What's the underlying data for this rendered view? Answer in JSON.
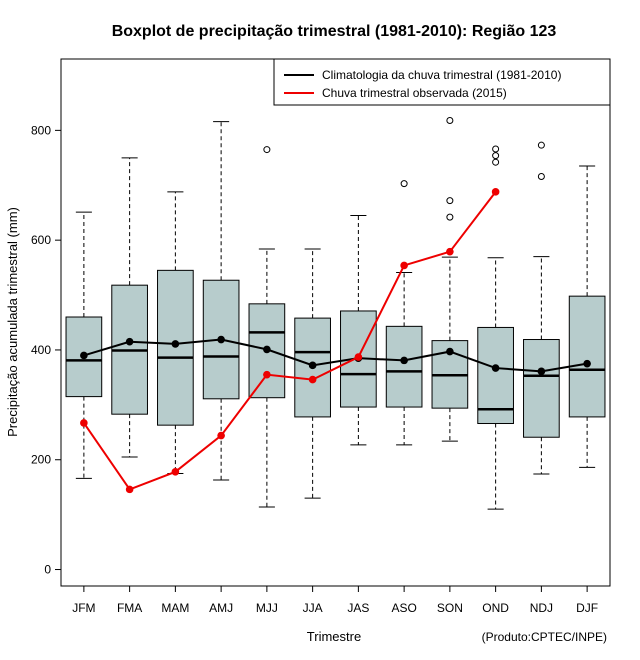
{
  "chart_data": {
    "type": "boxplot",
    "title": "Boxplot de precipitação trimestral (1981-2010): Região 123",
    "xlabel": "Trimestre",
    "ylabel": "Precipitação acumulada trimestral (mm)",
    "credit": "(Produto:CPTEC/INPE)",
    "ylim": [
      -30,
      930
    ],
    "yticks": [
      0,
      200,
      400,
      600,
      800
    ],
    "categories": [
      "JFM",
      "FMA",
      "MAM",
      "AMJ",
      "MJJ",
      "JJA",
      "JAS",
      "ASO",
      "SON",
      "OND",
      "NDJ",
      "DJF"
    ],
    "boxes": [
      {
        "whisker_low": 166,
        "q1": 315,
        "median": 381,
        "q3": 460,
        "whisker_high": 651,
        "outliers": []
      },
      {
        "whisker_low": 205,
        "q1": 283,
        "median": 399,
        "q3": 518,
        "whisker_high": 750,
        "outliers": []
      },
      {
        "whisker_low": 175,
        "q1": 263,
        "median": 386,
        "q3": 545,
        "whisker_high": 688,
        "outliers": []
      },
      {
        "whisker_low": 163,
        "q1": 311,
        "median": 388,
        "q3": 527,
        "whisker_high": 816,
        "outliers": []
      },
      {
        "whisker_low": 114,
        "q1": 313,
        "median": 432,
        "q3": 484,
        "whisker_high": 584,
        "outliers": [
          765
        ]
      },
      {
        "whisker_low": 130,
        "q1": 278,
        "median": 396,
        "q3": 458,
        "whisker_high": 584,
        "outliers": []
      },
      {
        "whisker_low": 227,
        "q1": 296,
        "median": 356,
        "q3": 471,
        "whisker_high": 645,
        "outliers": []
      },
      {
        "whisker_low": 227,
        "q1": 296,
        "median": 361,
        "q3": 443,
        "whisker_high": 541,
        "outliers": [
          703
        ]
      },
      {
        "whisker_low": 234,
        "q1": 294,
        "median": 354,
        "q3": 417,
        "whisker_high": 569,
        "outliers": [
          642,
          672,
          818
        ]
      },
      {
        "whisker_low": 110,
        "q1": 266,
        "median": 292,
        "q3": 441,
        "whisker_high": 568,
        "outliers": [
          742,
          754,
          766
        ]
      },
      {
        "whisker_low": 174,
        "q1": 241,
        "median": 353,
        "q3": 419,
        "whisker_high": 570,
        "outliers": [
          716,
          773
        ]
      },
      {
        "whisker_low": 186,
        "q1": 278,
        "median": 364,
        "q3": 498,
        "whisker_high": 735,
        "outliers": []
      }
    ],
    "series": [
      {
        "name": "Climatologia da chuva trimestral (1981-2010)",
        "color": "#000000",
        "values": [
          390,
          415,
          411,
          419,
          401,
          372,
          385,
          381,
          397,
          367,
          361,
          375
        ]
      },
      {
        "name": "Chuva trimestral observada (2015)",
        "color": "#ee0000",
        "values": [
          267,
          146,
          178,
          244,
          355,
          346,
          387,
          554,
          579,
          688,
          null,
          null
        ]
      }
    ],
    "box_fill": "#b7cccc",
    "legend_position": "top-right"
  }
}
